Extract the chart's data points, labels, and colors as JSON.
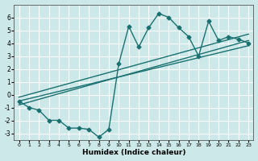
{
  "xlabel": "Humidex (Indice chaleur)",
  "ylabel": "",
  "bg_color": "#cce8e8",
  "grid_color": "#ffffff",
  "line_color": "#1a7070",
  "xlim": [
    -0.5,
    23.5
  ],
  "ylim": [
    -3.5,
    7.0
  ],
  "yticks": [
    -3,
    -2,
    -1,
    0,
    1,
    2,
    3,
    4,
    5,
    6
  ],
  "xticks": [
    0,
    1,
    2,
    3,
    4,
    5,
    6,
    7,
    8,
    9,
    10,
    11,
    12,
    13,
    14,
    15,
    16,
    17,
    18,
    19,
    20,
    21,
    22,
    23
  ],
  "line1_x": [
    0,
    1,
    2,
    3,
    4,
    5,
    6,
    7,
    8,
    9,
    10,
    11,
    12,
    13,
    14,
    15,
    16,
    17,
    18,
    19,
    20,
    21,
    22,
    23
  ],
  "line1_y": [
    -0.5,
    -1.0,
    -1.2,
    -2.0,
    -2.0,
    -2.6,
    -2.6,
    -2.7,
    -3.3,
    -2.7,
    2.4,
    5.3,
    3.7,
    5.2,
    6.3,
    6.0,
    5.2,
    4.5,
    3.0,
    5.7,
    4.2,
    4.5,
    4.3,
    4.0
  ],
  "line2_x": [
    0,
    23
  ],
  "line2_y": [
    -0.8,
    4.2
  ],
  "line3_x": [
    0,
    23
  ],
  "line3_y": [
    -0.2,
    4.7
  ],
  "line4_x": [
    0,
    23
  ],
  "line4_y": [
    -0.5,
    3.8
  ]
}
